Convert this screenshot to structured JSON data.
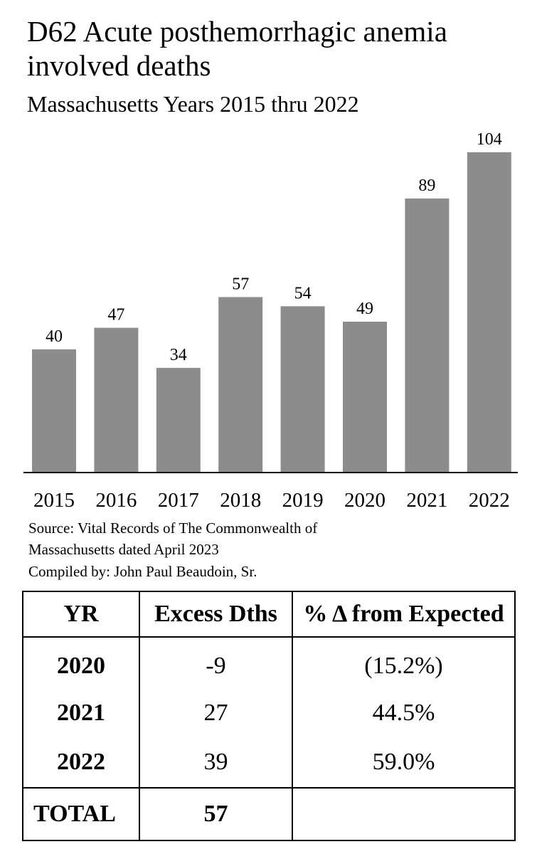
{
  "chart_data": {
    "type": "bar",
    "title": "D62 Acute posthemorrhagic anemia involved deaths",
    "subtitle": "Massachusetts Years 2015 thru 2022",
    "categories": [
      "2015",
      "2016",
      "2017",
      "2018",
      "2019",
      "2020",
      "2021",
      "2022"
    ],
    "values": [
      40,
      47,
      34,
      57,
      54,
      49,
      89,
      104
    ],
    "xlabel": "",
    "ylabel": "",
    "ylim": [
      0,
      104
    ],
    "grid": false,
    "bar_color": "#8c8c8c"
  },
  "notes": {
    "source_line1": "Source:  Vital Records of The Commonwealth of",
    "source_line2": "Massachusetts dated April 2023",
    "compiled": "Compiled by:  John Paul Beaudoin, Sr."
  },
  "table": {
    "headers": [
      "YR",
      "Excess Dths",
      "% Δ from Expected"
    ],
    "rows": [
      {
        "yr": "2020",
        "excess": "-9",
        "pct": "(15.2%)"
      },
      {
        "yr": "2021",
        "excess": "27",
        "pct": "44.5%"
      },
      {
        "yr": "2022",
        "excess": "39",
        "pct": "59.0%"
      }
    ],
    "total_label": "TOTAL",
    "total_value": "57"
  }
}
